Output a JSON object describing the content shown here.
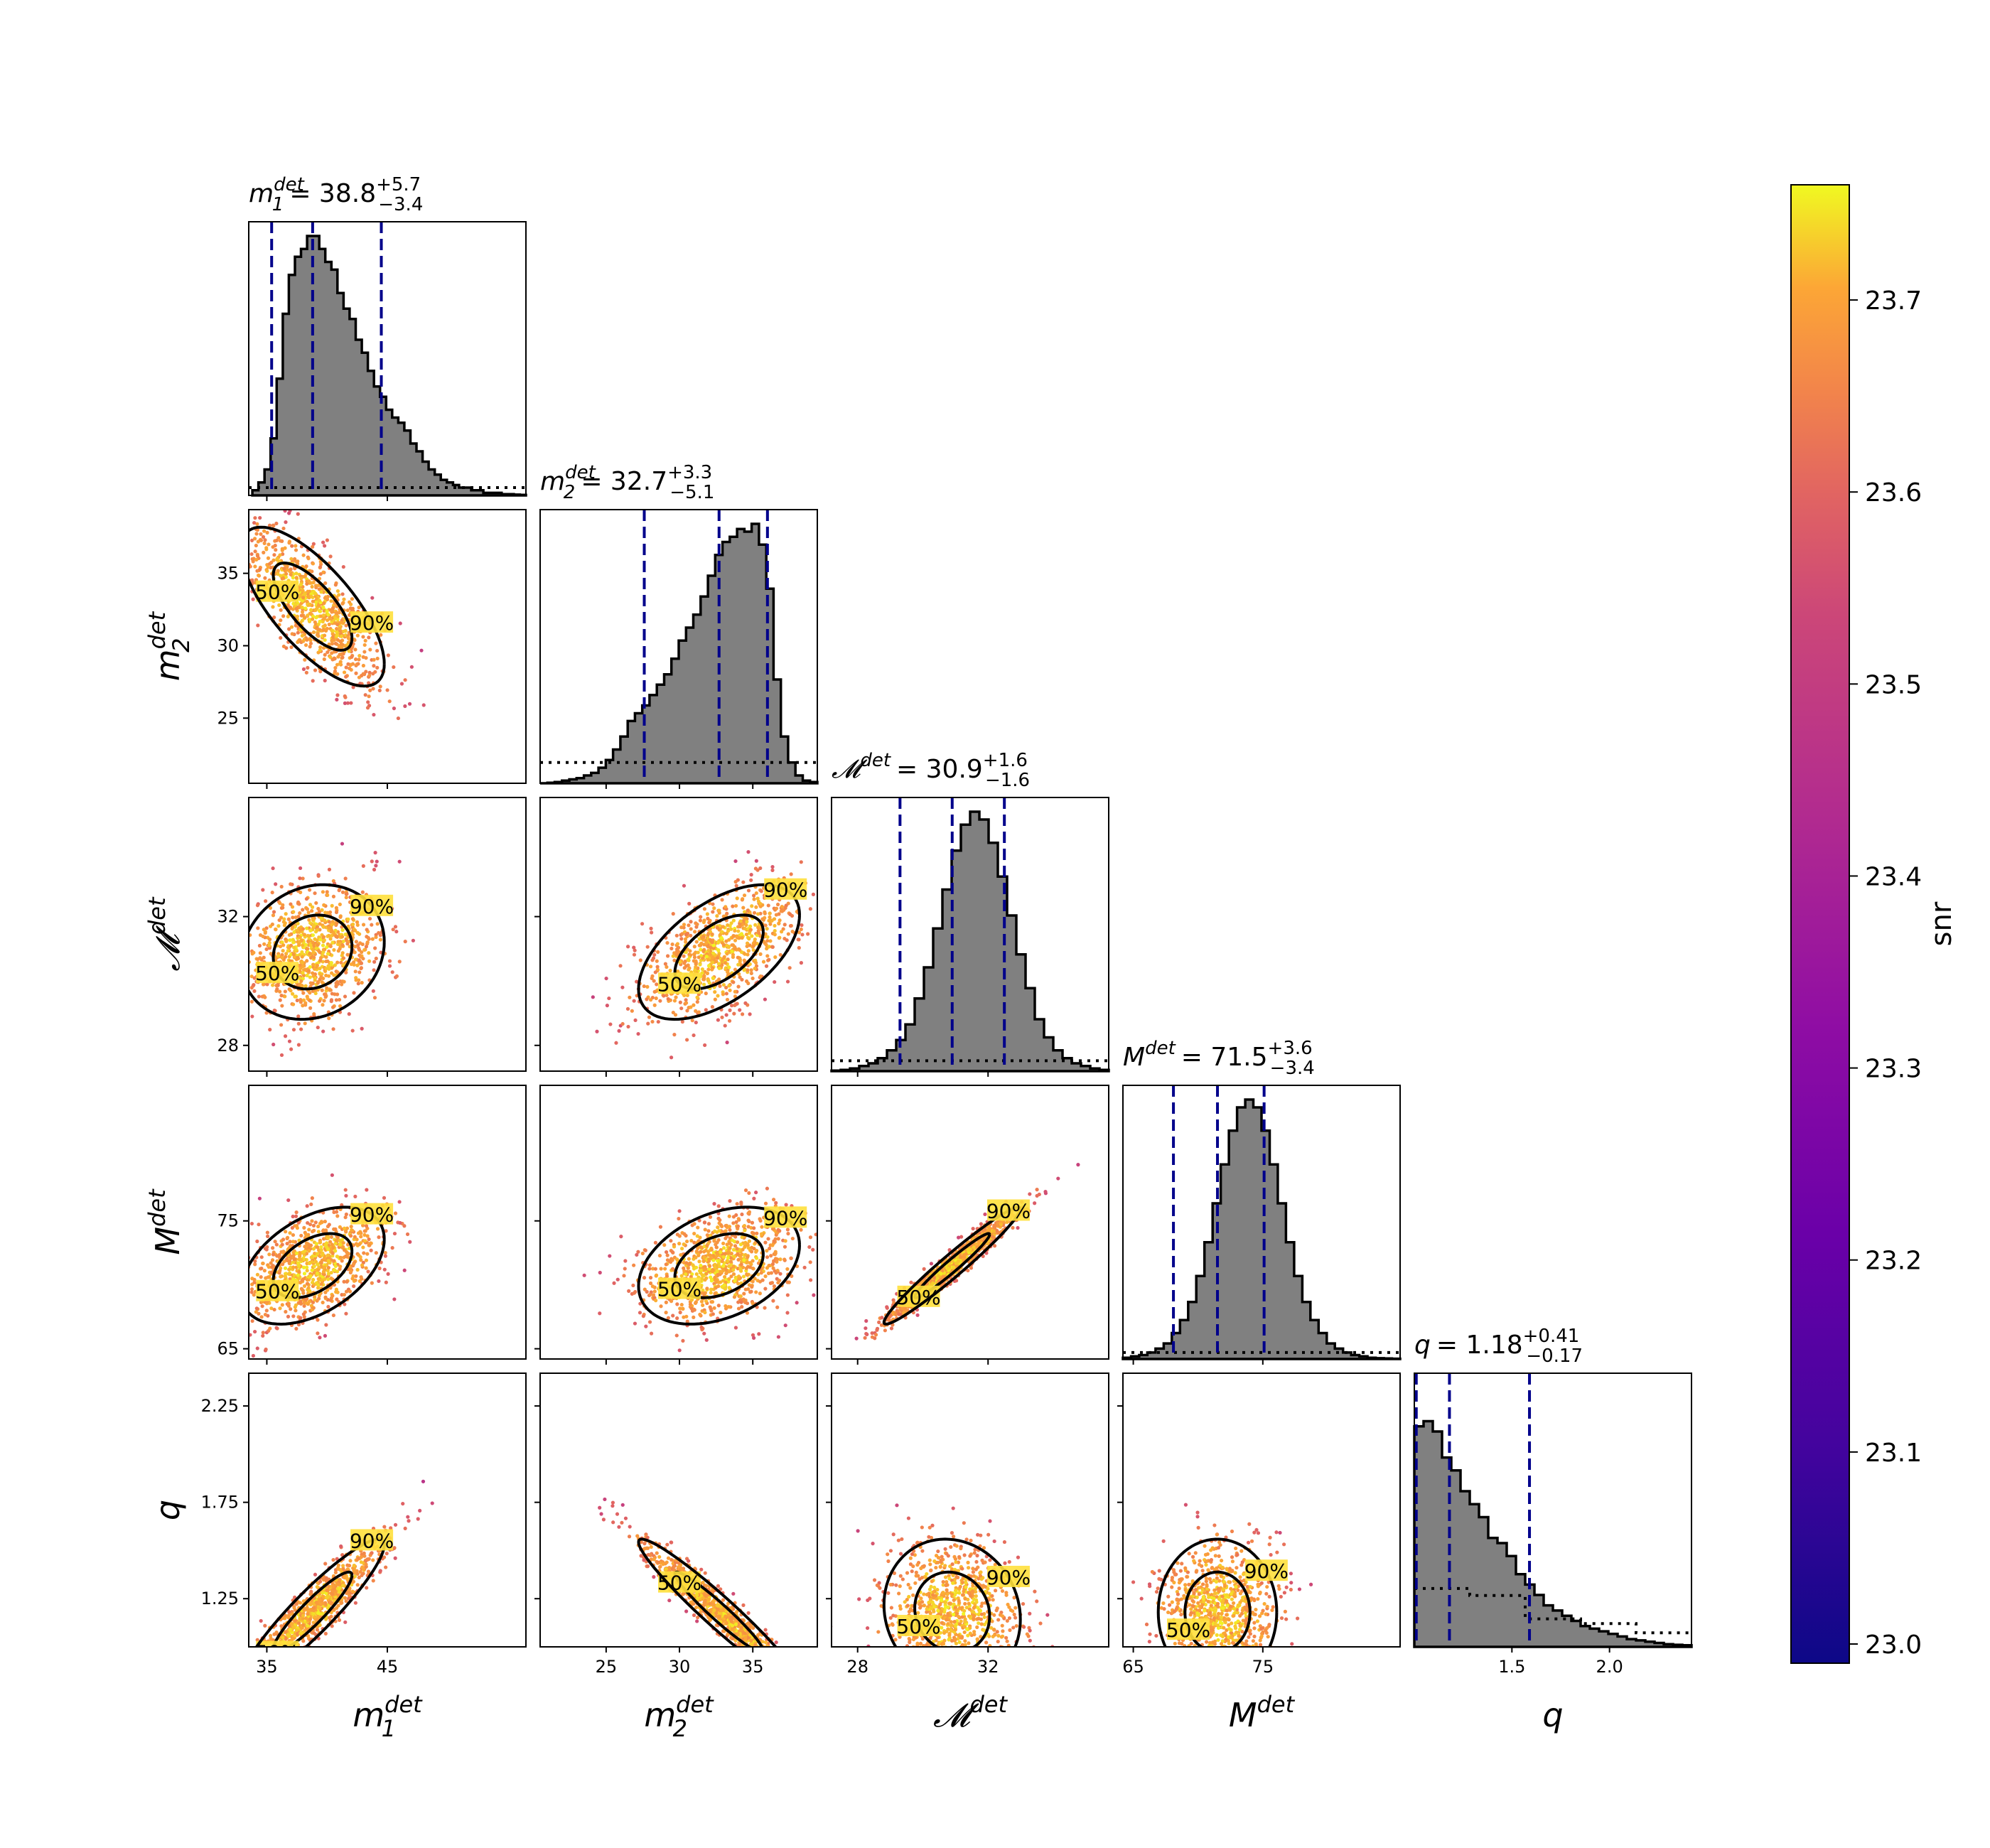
{
  "chart_data": {
    "type": "scatter",
    "layout": "corner-plot",
    "parameters": [
      {
        "key": "m1",
        "label": "m",
        "label_sub": "1",
        "label_sup": "det",
        "range": [
          33.5,
          56.5
        ],
        "ticks": [
          35,
          45
        ],
        "tick_labels": [
          "35",
          "45"
        ],
        "median": 38.8,
        "plus": "+5.7",
        "minus": "−3.4",
        "quantiles": [
          35.4,
          38.8,
          44.5
        ],
        "title_value": "38.8"
      },
      {
        "key": "m2",
        "label": "m",
        "label_sub": "2",
        "label_sup": "det",
        "range": [
          20.5,
          39.4
        ],
        "ticks": [
          25,
          30,
          35
        ],
        "tick_labels": [
          "25",
          "30",
          "35"
        ],
        "median": 32.7,
        "plus": "+3.3",
        "minus": "−5.1",
        "quantiles": [
          27.6,
          32.7,
          36.0
        ],
        "title_value": "32.7"
      },
      {
        "key": "mc",
        "label": "𝓜",
        "label_sub": "",
        "label_sup": "det",
        "range": [
          27.2,
          35.7
        ],
        "ticks": [
          28,
          32
        ],
        "tick_labels": [
          "28",
          "32"
        ],
        "median": 30.9,
        "plus": "+1.6",
        "minus": "−1.6",
        "quantiles": [
          29.3,
          30.9,
          32.5
        ],
        "title_value": "30.9"
      },
      {
        "key": "mt",
        "label": "M",
        "label_sub": "",
        "label_sup": "det",
        "range": [
          64.2,
          85.6
        ],
        "ticks": [
          65,
          75
        ],
        "tick_labels": [
          "65",
          "75"
        ],
        "median": 71.5,
        "plus": "+3.6",
        "minus": "−3.4",
        "quantiles": [
          68.1,
          71.5,
          75.1
        ],
        "title_value": "71.5"
      },
      {
        "key": "q",
        "label": "q",
        "label_sub": "",
        "label_sup": "",
        "range": [
          1.0,
          2.42
        ],
        "ticks": [
          1.5,
          2.0
        ],
        "tick_labels": [
          "1.5",
          "2.0"
        ],
        "median": 1.18,
        "plus": "+0.41",
        "minus": "−0.17",
        "quantiles": [
          1.01,
          1.18,
          1.59
        ],
        "title_value": "1.18"
      }
    ],
    "y_ticks": {
      "m2": {
        "ticks": [
          25,
          30,
          35
        ],
        "labels": [
          "25",
          "30",
          "35"
        ]
      },
      "mc": {
        "ticks": [
          28,
          32
        ],
        "labels": [
          "28",
          "32"
        ]
      },
      "mt": {
        "ticks": [
          65,
          75
        ],
        "labels": [
          "65",
          "75"
        ]
      },
      "q": {
        "ticks": [
          1.25,
          1.75,
          2.25
        ],
        "labels": [
          "1.25",
          "1.75",
          "2.25"
        ]
      }
    },
    "histograms": {
      "m1": [
        0.02,
        0.05,
        0.1,
        0.22,
        0.45,
        0.7,
        0.85,
        0.92,
        0.95,
        1.0,
        1.0,
        0.95,
        0.9,
        0.87,
        0.78,
        0.72,
        0.68,
        0.6,
        0.55,
        0.48,
        0.42,
        0.38,
        0.33,
        0.3,
        0.28,
        0.25,
        0.2,
        0.17,
        0.13,
        0.1,
        0.08,
        0.06,
        0.05,
        0.04,
        0.03,
        0.03,
        0.02,
        0.02,
        0.01,
        0.01,
        0.01,
        0.005,
        0.005,
        0.003,
        0.002
      ],
      "m2": [
        0.0,
        0.002,
        0.005,
        0.01,
        0.015,
        0.02,
        0.03,
        0.04,
        0.06,
        0.09,
        0.13,
        0.18,
        0.24,
        0.27,
        0.3,
        0.34,
        0.38,
        0.42,
        0.48,
        0.55,
        0.6,
        0.65,
        0.72,
        0.8,
        0.88,
        0.93,
        0.95,
        0.98,
        0.97,
        1.0,
        0.92,
        0.75,
        0.4,
        0.18,
        0.08,
        0.03,
        0.01,
        0.005
      ],
      "mc": [
        0.002,
        0.005,
        0.01,
        0.02,
        0.03,
        0.05,
        0.08,
        0.12,
        0.18,
        0.28,
        0.4,
        0.55,
        0.7,
        0.85,
        0.95,
        1.0,
        0.97,
        0.88,
        0.75,
        0.6,
        0.45,
        0.32,
        0.2,
        0.13,
        0.08,
        0.05,
        0.03,
        0.02,
        0.01,
        0.005
      ],
      "mt": [
        0.005,
        0.01,
        0.015,
        0.025,
        0.04,
        0.06,
        0.1,
        0.15,
        0.22,
        0.32,
        0.45,
        0.6,
        0.75,
        0.88,
        0.97,
        1.0,
        0.97,
        0.88,
        0.75,
        0.6,
        0.45,
        0.32,
        0.22,
        0.15,
        0.1,
        0.06,
        0.04,
        0.025,
        0.015,
        0.01,
        0.005,
        0.003,
        0.002,
        0.001
      ],
      "q": [
        0.85,
        0.87,
        0.83,
        0.73,
        0.68,
        0.6,
        0.55,
        0.5,
        0.42,
        0.4,
        0.35,
        0.28,
        0.24,
        0.2,
        0.16,
        0.14,
        0.12,
        0.1,
        0.08,
        0.07,
        0.06,
        0.05,
        0.04,
        0.03,
        0.025,
        0.02,
        0.015,
        0.01,
        0.008,
        0.006
      ]
    },
    "prior_level": {
      "m1": 0.03,
      "m2": 0.08,
      "mc": 0.04,
      "mt": 0.025,
      "q": [
        0.25,
        0.22,
        0.12,
        0.1,
        0.06
      ]
    },
    "correlations": {
      "m1_m2": -0.72,
      "m1_mc": 0.15,
      "m1_mt": 0.45,
      "m1_q": 0.92,
      "m2_mc": 0.55,
      "m2_mt": 0.35,
      "m2_q": -0.96,
      "mc_mt": 0.97,
      "mc_q": -0.1,
      "mt_q": 0.0
    },
    "contour_labels": [
      "50%",
      "90%"
    ],
    "colorbar": {
      "label": "snr",
      "min": 22.99,
      "max": 23.76,
      "ticks": [
        23.0,
        23.1,
        23.2,
        23.3,
        23.4,
        23.5,
        23.6,
        23.7
      ],
      "tick_labels": [
        "23.0",
        "23.1",
        "23.2",
        "23.3",
        "23.4",
        "23.5",
        "23.6",
        "23.7"
      ],
      "colormap": "plasma"
    },
    "colors": {
      "histogram_fill": "#808080",
      "histogram_edge": "#000000",
      "quantile_line": "#00008b",
      "contour": "#000000"
    }
  }
}
